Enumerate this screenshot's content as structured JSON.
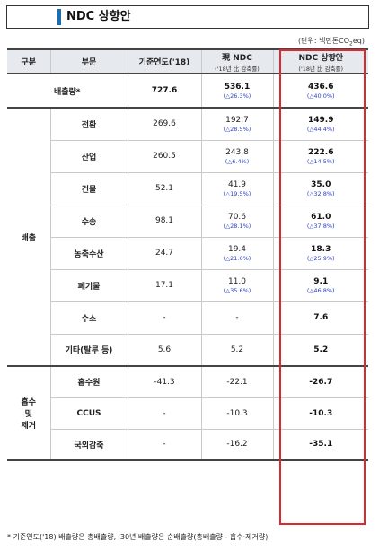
{
  "title": "NDC 상향안",
  "unit": {
    "prefix": "(단위: 백만톤CO",
    "sub": "2",
    "suffix": "eq)"
  },
  "header": {
    "col1": "구분",
    "col2": "부문",
    "col3": "기준연도('18)",
    "col4": "現 NDC",
    "col4_sub": "('18년 比 감축률)",
    "col5": "NDC 상향안",
    "col5_sub": "('18년 比 감축률)"
  },
  "total_row": {
    "label": "배출량*",
    "base": "727.6",
    "current": "536.1",
    "current_chg": "(△26.3%)",
    "proposed": "436.6",
    "proposed_chg": "(△40.0%)"
  },
  "groups": {
    "emission": "배출",
    "absorption": "흡수\n및\n제거"
  },
  "emission_rows": [
    {
      "sector": "전환",
      "base": "269.6",
      "current": "192.7",
      "current_chg": "(△28.5%)",
      "proposed": "149.9",
      "proposed_chg": "(△44.4%)"
    },
    {
      "sector": "산업",
      "base": "260.5",
      "current": "243.8",
      "current_chg": "(△6.4%)",
      "proposed": "222.6",
      "proposed_chg": "(△14.5%)"
    },
    {
      "sector": "건물",
      "base": "52.1",
      "current": "41.9",
      "current_chg": "(△19.5%)",
      "proposed": "35.0",
      "proposed_chg": "(△32.8%)"
    },
    {
      "sector": "수송",
      "base": "98.1",
      "current": "70.6",
      "current_chg": "(△28.1%)",
      "proposed": "61.0",
      "proposed_chg": "(△37.8%)"
    },
    {
      "sector": "농축수산",
      "base": "24.7",
      "current": "19.4",
      "current_chg": "(△21.6%)",
      "proposed": "18.3",
      "proposed_chg": "(△25.9%)"
    },
    {
      "sector": "폐기물",
      "base": "17.1",
      "current": "11.0",
      "current_chg": "(△35.6%)",
      "proposed": "9.1",
      "proposed_chg": "(△46.8%)"
    },
    {
      "sector": "수소",
      "base": "-",
      "current": "-",
      "current_chg": "",
      "proposed": "7.6",
      "proposed_chg": ""
    },
    {
      "sector": "기타(탈루 등)",
      "base": "5.6",
      "current": "5.2",
      "current_chg": "",
      "proposed": "5.2",
      "proposed_chg": ""
    }
  ],
  "absorption_rows": [
    {
      "sector": "흡수원",
      "base": "-41.3",
      "current": "-22.1",
      "proposed": "-26.7"
    },
    {
      "sector": "CCUS",
      "base": "-",
      "current": "-10.3",
      "proposed": "-10.3"
    },
    {
      "sector": "국외감축",
      "base": "-",
      "current": "-16.2",
      "proposed": "-35.1"
    }
  ],
  "footnote": "* 기준연도('18) 배출량은 총배출량, '30년 배출량은 순배출량(총배출량 - 흡수·제거량)"
}
